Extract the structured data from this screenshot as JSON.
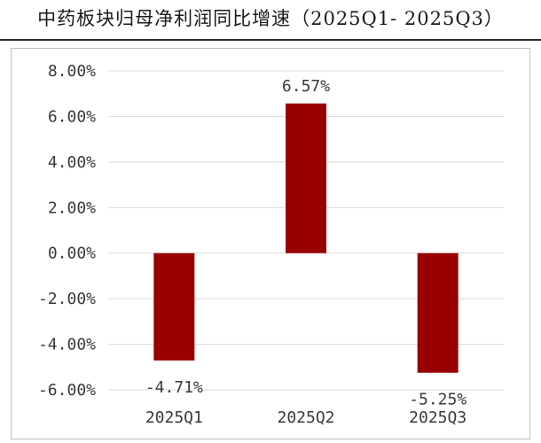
{
  "page_title": "中药板块归母净利润同比增速（2025Q1- 2025Q3）",
  "chart_data": {
    "type": "bar",
    "title": "中药板块归母净利润同比增速（2025Q1- 2025Q3）",
    "categories": [
      "2025Q1",
      "2025Q2",
      "2025Q3"
    ],
    "values": [
      -4.71,
      6.57,
      -5.25
    ],
    "data_labels": [
      "-4.71%",
      "6.57%",
      "-5.25%"
    ],
    "y_ticks": [
      8,
      6,
      4,
      2,
      0,
      -2,
      -4,
      -6
    ],
    "y_tick_labels": [
      "8.00%",
      "6.00%",
      "4.00%",
      "2.00%",
      "0.00%",
      "-2.00%",
      "-4.00%",
      "-6.00%"
    ],
    "ylim": [
      -6,
      8
    ],
    "xlabel": "",
    "ylabel": "",
    "grid": true,
    "legend": "none",
    "bar_color": "#990000",
    "grid_color": "#d9d9d9"
  }
}
